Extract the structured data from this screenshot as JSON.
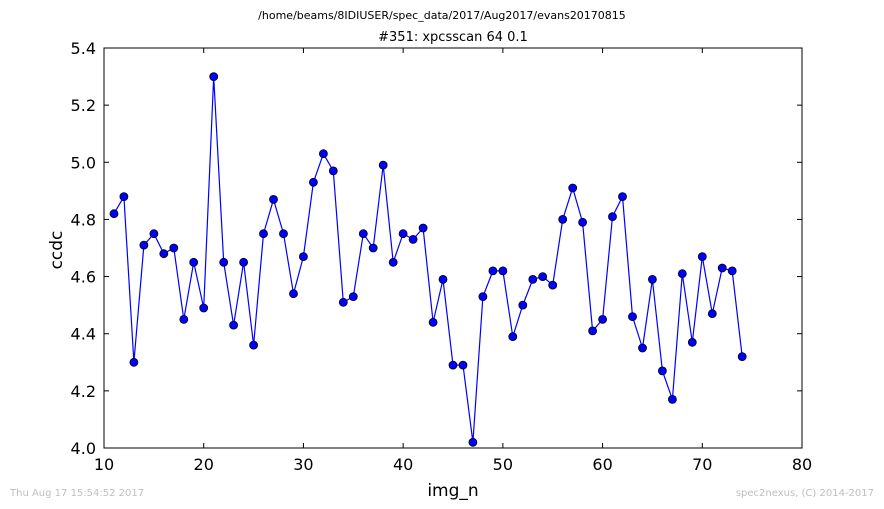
{
  "header": {
    "path": "/home/beams/8IDIUSER/spec_data/2017/Aug2017/evans20170815"
  },
  "footer": {
    "timestamp": "Thu Aug 17 15:54:52 2017",
    "credit": "spec2nexus, (C) 2014-2017"
  },
  "colors": {
    "series": "#0000ff",
    "axes": "#000000",
    "footer_text": "#bfbfbf"
  },
  "chart_data": {
    "type": "line",
    "title": "#351: xpcsscan 64 0.1",
    "xlabel": "img_n",
    "ylabel": "ccdc",
    "xlim": [
      10,
      80
    ],
    "ylim": [
      4.0,
      5.4
    ],
    "x_ticks": [
      "10",
      "20",
      "30",
      "40",
      "50",
      "60",
      "70",
      "80"
    ],
    "y_ticks": [
      "4.0",
      "4.2",
      "4.4",
      "4.6",
      "4.8",
      "5.0",
      "5.2",
      "5.4"
    ],
    "grid": false,
    "markers": "circle",
    "x": [
      11,
      12,
      13,
      14,
      15,
      16,
      17,
      18,
      19,
      20,
      21,
      22,
      23,
      24,
      25,
      26,
      27,
      28,
      29,
      30,
      31,
      32,
      33,
      34,
      35,
      36,
      37,
      38,
      39,
      40,
      41,
      42,
      43,
      44,
      45,
      46,
      47,
      48,
      49,
      50,
      51,
      52,
      53,
      54,
      55,
      56,
      57,
      58,
      59,
      60,
      61,
      62,
      63,
      64,
      65,
      66,
      67,
      68,
      69,
      70,
      71,
      72,
      73,
      74
    ],
    "y": [
      4.82,
      4.88,
      4.3,
      4.71,
      4.75,
      4.68,
      4.7,
      4.45,
      4.65,
      4.49,
      5.3,
      4.65,
      4.43,
      4.65,
      4.36,
      4.75,
      4.87,
      4.75,
      4.54,
      4.67,
      4.93,
      5.03,
      4.97,
      4.51,
      4.53,
      4.75,
      4.7,
      4.99,
      4.65,
      4.75,
      4.73,
      4.77,
      4.44,
      4.59,
      4.29,
      4.29,
      4.02,
      4.53,
      4.62,
      4.62,
      4.39,
      4.5,
      4.59,
      4.6,
      4.57,
      4.8,
      4.91,
      4.79,
      4.41,
      4.45,
      4.81,
      4.88,
      4.46,
      4.35,
      4.59,
      4.27,
      4.17,
      4.61,
      4.37,
      4.67,
      4.47,
      4.63,
      4.62,
      4.32
    ]
  }
}
